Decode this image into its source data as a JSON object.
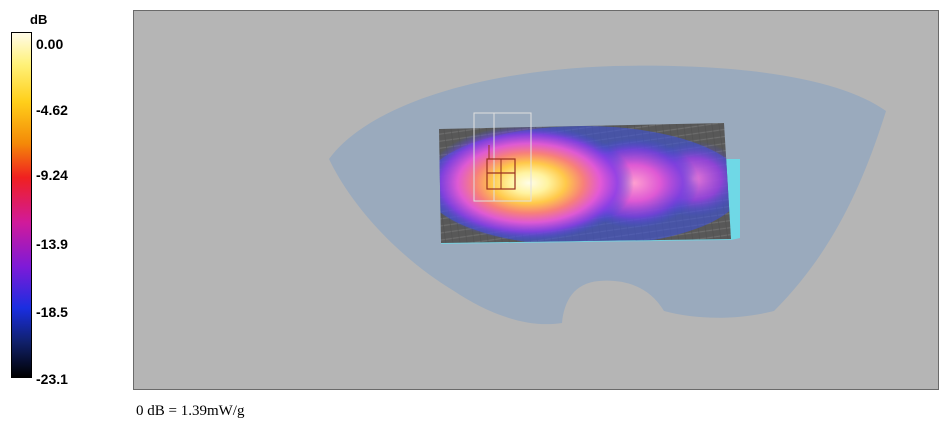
{
  "legend": {
    "unit": "dB",
    "ticks": [
      "0.00",
      "-4.62",
      "-9.24",
      "-13.9",
      "-18.5",
      "-23.1"
    ],
    "gradient_stops": [
      {
        "pct": 0,
        "color": "#fffbe8"
      },
      {
        "pct": 9,
        "color": "#fff27a"
      },
      {
        "pct": 20,
        "color": "#ffcf1a"
      },
      {
        "pct": 32,
        "color": "#f48a08"
      },
      {
        "pct": 42,
        "color": "#f02020"
      },
      {
        "pct": 55,
        "color": "#d11a9a"
      },
      {
        "pct": 68,
        "color": "#7d1ad8"
      },
      {
        "pct": 80,
        "color": "#1a2ee0"
      },
      {
        "pct": 90,
        "color": "#10206a"
      },
      {
        "pct": 100,
        "color": "#000000"
      }
    ]
  },
  "colors": {
    "background": "#b5b5b5",
    "phantom": "#9aaabd",
    "device_grid": "#585858",
    "device_edge": "#6fd8e6",
    "wireframe": "#d8d8d8",
    "feed": "#9a3020"
  },
  "reference_note": "0 dB = 1.39mW/g"
}
